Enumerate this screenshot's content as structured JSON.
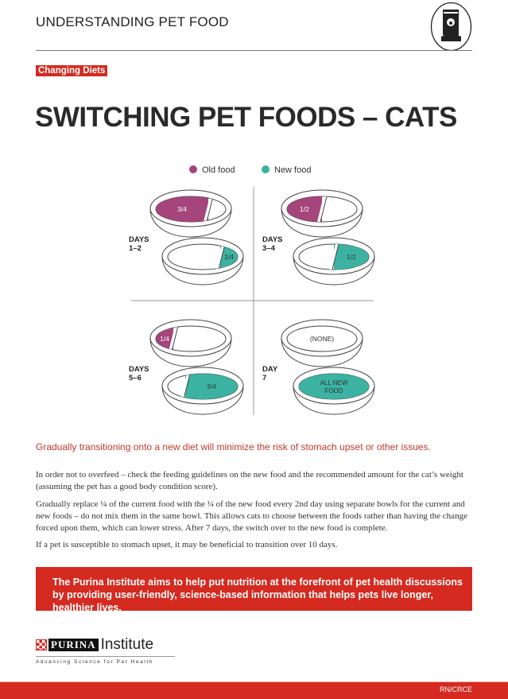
{
  "header": {
    "title": "UNDERSTANDING PET FOOD",
    "icon": "pet-food-bag-icon"
  },
  "tag": "Changing Diets",
  "title": "SWITCHING PET FOODS – CATS",
  "colors": {
    "old": "#a5457c",
    "new": "#3cb3a2",
    "brand_red": "#d42a20"
  },
  "legend": [
    {
      "label": "Old food",
      "color": "#a5457c"
    },
    {
      "label": "New food",
      "color": "#3cb3a2"
    }
  ],
  "quadrants": [
    {
      "days": [
        "DAYS",
        "1–2"
      ],
      "old": {
        "fraction": 0.75,
        "label": "3/4"
      },
      "new": {
        "fraction": 0.25,
        "label": "1/4"
      }
    },
    {
      "days": [
        "DAYS",
        "3–4"
      ],
      "old": {
        "fraction": 0.5,
        "label": "1/2"
      },
      "new": {
        "fraction": 0.5,
        "label": "1/2"
      }
    },
    {
      "days": [
        "DAYS",
        "5–6"
      ],
      "old": {
        "fraction": 0.25,
        "label": "1/4"
      },
      "new": {
        "fraction": 0.75,
        "label": "3/4"
      }
    },
    {
      "days": [
        "DAY",
        "7"
      ],
      "old": {
        "fraction": 0,
        "label": "(NONE)"
      },
      "new": {
        "fraction": 1,
        "label": [
          "ALL NEW",
          "FOOD"
        ]
      }
    }
  ],
  "lead": "Gradually transitioning onto a new diet will minimize the risk of stomach upset or other issues.",
  "paragraphs": [
    "In order not to overfeed – check the feeding guidelines on the new food and the recommended amount for the cat’s weight (assuming the pet has a good body condition score).",
    "Gradually replace ¼ of the current food with the ¼ of the new food every 2nd day using separate bowls for the current and new foods – do not mix them in the same bowl. This allows cats to choose between the foods rather than having the change forced upon them, which can lower stress. After 7 days, the switch over to the new food is complete.",
    "If a pet is susceptible to stomach upset, it may be beneficial to transition over 10 days."
  ],
  "callout": "The Purina Institute aims to help put nutrition at the forefront of pet health discussions by providing user-friendly, science-based information that helps pets live longer, healthier lives.",
  "logo": {
    "brand": "PURINA",
    "name": "Institute",
    "tagline": "Advancing Science for Pet Health"
  },
  "footer": {
    "code": "RN/CRCE"
  }
}
